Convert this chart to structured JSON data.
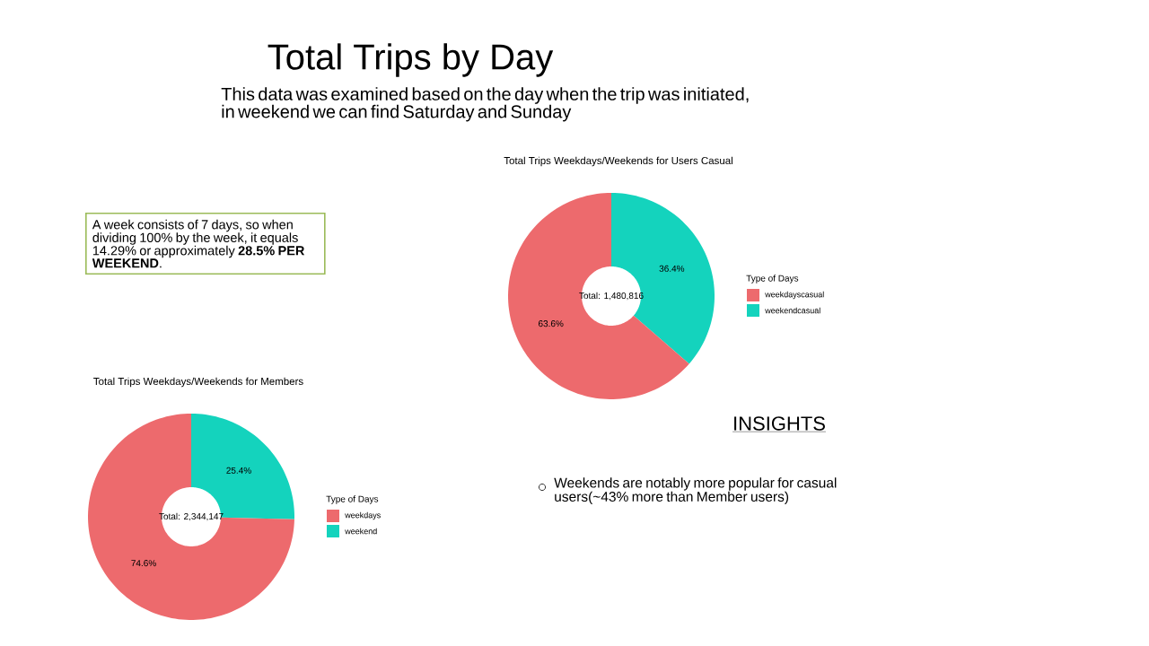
{
  "chart_data": [
    {
      "type": "other",
      "title": "Total Trips by Day",
      "subtitle": "This data was examined based on the day when the trip was initiated, in weekend we can find Saturday and Sunday",
      "annotations": [
        "A week consists of 7 days, so when dividing 100% by the week, it equals 14.29% or approximately **28.5% PER WEEKEND**.",
        "INSIGHTS",
        "Weekends are notably more popular for casual users(~43% more than Member users)"
      ]
    },
    {
      "type": "donut",
      "title": "Total Trips Weekdays/Weekends for Users Casual",
      "legend_title": "Type of Days",
      "legend": "right",
      "categories": [
        "weekdayscasual",
        "weekendcasual"
      ],
      "values": [
        63.6,
        36.4
      ],
      "colors": [
        "#ed6a6d",
        "#14d3bd"
      ],
      "value_labels": [
        "63.6%",
        "36.4%"
      ],
      "annotations": [
        "Total: 1,480,816"
      ]
    },
    {
      "type": "donut",
      "title": "Total Trips Weekdays/Weekends for Members",
      "legend_title": "Type of Days",
      "legend": "right",
      "categories": [
        "weekdays",
        "weekend"
      ],
      "values": [
        74.6,
        25.4
      ],
      "colors": [
        "#ed6a6d",
        "#14d3bd"
      ],
      "value_labels": [
        "74.6%",
        "25.4%"
      ],
      "annotations": [
        "Total: 2,344,147"
      ]
    }
  ]
}
